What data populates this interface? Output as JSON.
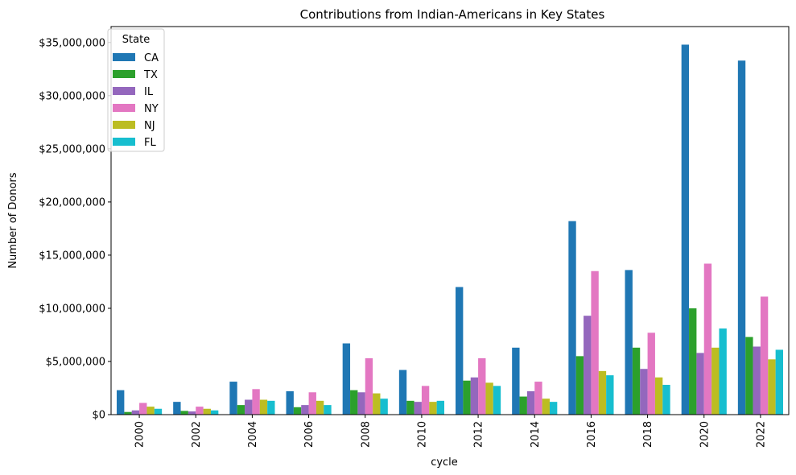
{
  "chart_data": {
    "type": "bar",
    "title": "Contributions from Indian-Americans in Key States",
    "xlabel": "cycle",
    "ylabel": "Number of Donors",
    "ylim": [
      0,
      36500000
    ],
    "yticks": [
      0,
      5000000,
      10000000,
      15000000,
      20000000,
      25000000,
      30000000,
      35000000
    ],
    "ytick_labels": [
      "$0",
      "$5,000,000",
      "$10,000,000",
      "$15,000,000",
      "$20,000,000",
      "$25,000,000",
      "$30,000,000",
      "$35,000,000"
    ],
    "categories": [
      "2000",
      "2002",
      "2004",
      "2006",
      "2008",
      "2010",
      "2012",
      "2014",
      "2016",
      "2018",
      "2020",
      "2022"
    ],
    "grid": false,
    "legend": {
      "title": "State",
      "placement": "top-left"
    },
    "series": [
      {
        "name": "CA",
        "color": "#1f77b4",
        "values": [
          2300000,
          1200000,
          3100000,
          2200000,
          6700000,
          4200000,
          12000000,
          6300000,
          18200000,
          13600000,
          34800000,
          33300000
        ]
      },
      {
        "name": "TX",
        "color": "#2ca02c",
        "values": [
          250000,
          350000,
          900000,
          700000,
          2300000,
          1300000,
          3200000,
          1700000,
          5500000,
          6300000,
          10000000,
          7300000
        ]
      },
      {
        "name": "IL",
        "color": "#9467bd",
        "values": [
          400000,
          300000,
          1400000,
          900000,
          2100000,
          1200000,
          3500000,
          2200000,
          9300000,
          4300000,
          5800000,
          6400000
        ]
      },
      {
        "name": "NY",
        "color": "#e377c2",
        "values": [
          1100000,
          750000,
          2400000,
          2100000,
          5300000,
          2700000,
          5300000,
          3100000,
          13500000,
          7700000,
          14200000,
          11100000
        ]
      },
      {
        "name": "NJ",
        "color": "#bcbd22",
        "values": [
          750000,
          550000,
          1400000,
          1300000,
          2000000,
          1200000,
          3000000,
          1500000,
          4100000,
          3500000,
          6300000,
          5200000
        ]
      },
      {
        "name": "FL",
        "color": "#17becf",
        "values": [
          550000,
          400000,
          1300000,
          900000,
          1500000,
          1300000,
          2700000,
          1200000,
          3700000,
          2800000,
          8100000,
          6100000
        ]
      }
    ]
  }
}
